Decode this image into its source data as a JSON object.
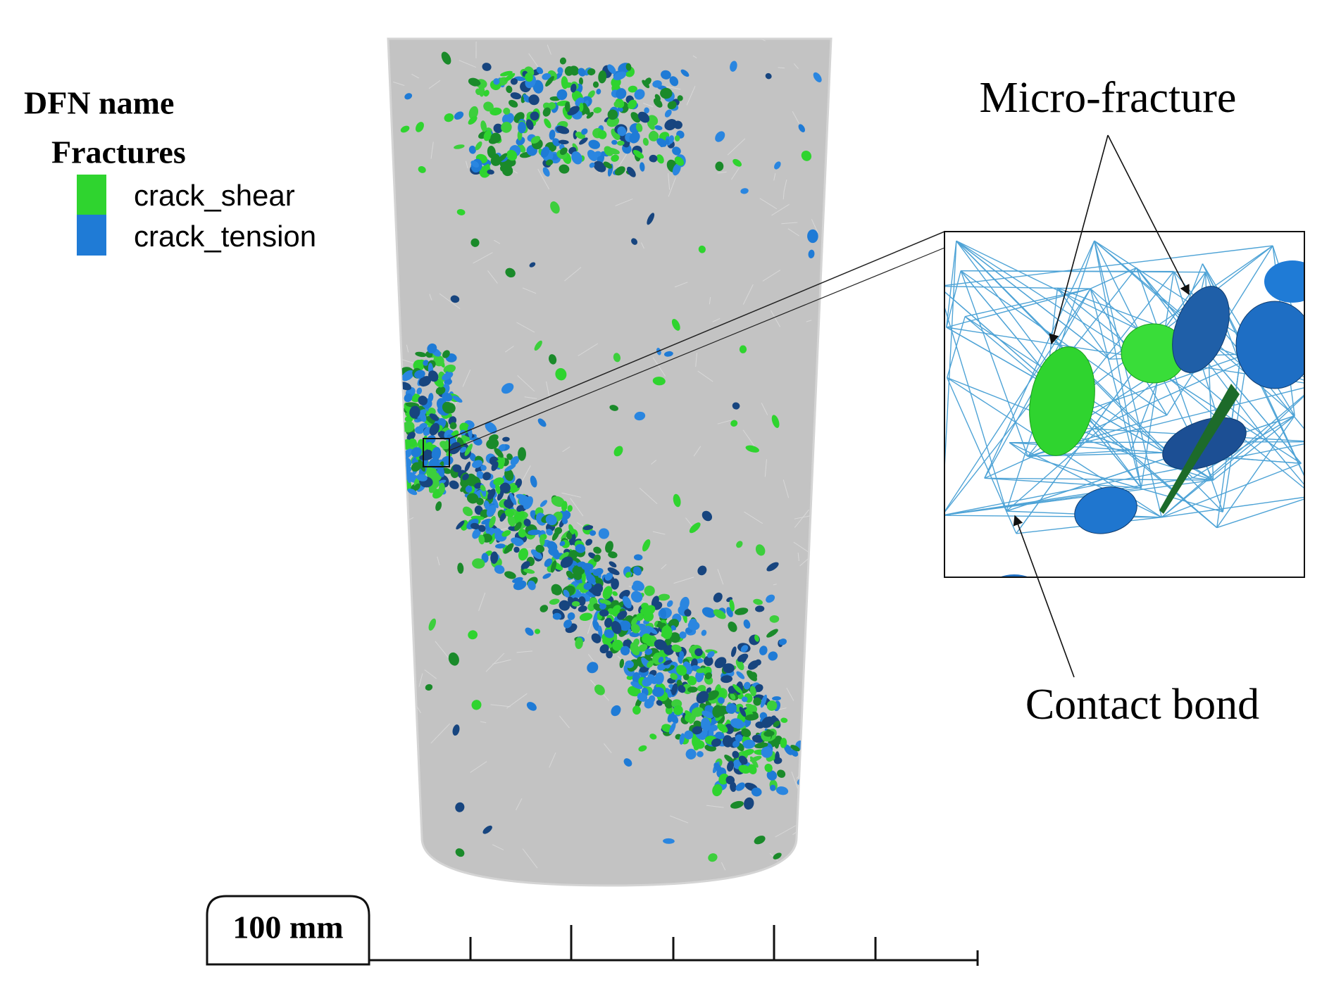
{
  "legend": {
    "title": "DFN name",
    "group": "Fractures",
    "items": [
      "crack_shear",
      "crack_tension"
    ]
  },
  "annotations": {
    "micro_fracture": "Micro-fracture",
    "contact_bond": "Contact bond"
  },
  "scale_bar": {
    "label": "100 mm"
  }
}
